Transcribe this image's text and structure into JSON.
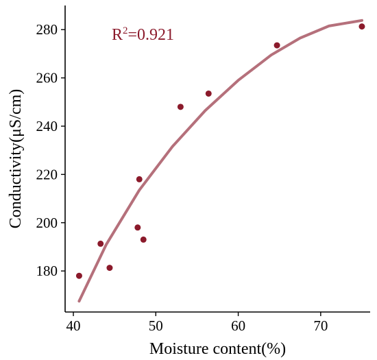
{
  "chart_data": {
    "type": "scatter",
    "xlabel": "Moisture content(%)",
    "ylabel": "Conductivity(μS/cm)",
    "xlim": [
      39,
      76
    ],
    "ylim": [
      163,
      290
    ],
    "xticks": [
      40,
      50,
      60,
      70
    ],
    "yticks": [
      180,
      200,
      220,
      240,
      260,
      280
    ],
    "grid": false,
    "annotation": {
      "prefix": "R",
      "superscript": "2",
      "suffix": "=0.921"
    },
    "colors": {
      "points": "#8b1a2b",
      "fit": "#b5707b",
      "annotation": "#8b1a2b"
    },
    "points": [
      {
        "x": 40.7,
        "y": 178.0
      },
      {
        "x": 43.3,
        "y": 191.3
      },
      {
        "x": 44.4,
        "y": 181.3
      },
      {
        "x": 47.8,
        "y": 198.0
      },
      {
        "x": 48.0,
        "y": 218.0
      },
      {
        "x": 48.5,
        "y": 193.0
      },
      {
        "x": 53.0,
        "y": 248.0
      },
      {
        "x": 56.4,
        "y": 253.5
      },
      {
        "x": 64.7,
        "y": 273.5
      },
      {
        "x": 75.0,
        "y": 281.3
      }
    ],
    "fit_line": {
      "x": [
        40.7,
        44.0,
        48.0,
        52.0,
        56.0,
        60.0,
        64.0,
        67.5,
        71.0,
        75.0
      ],
      "y": [
        167.5,
        191.0,
        213.5,
        231.5,
        246.5,
        259.0,
        269.5,
        276.5,
        281.5,
        283.8
      ]
    }
  }
}
